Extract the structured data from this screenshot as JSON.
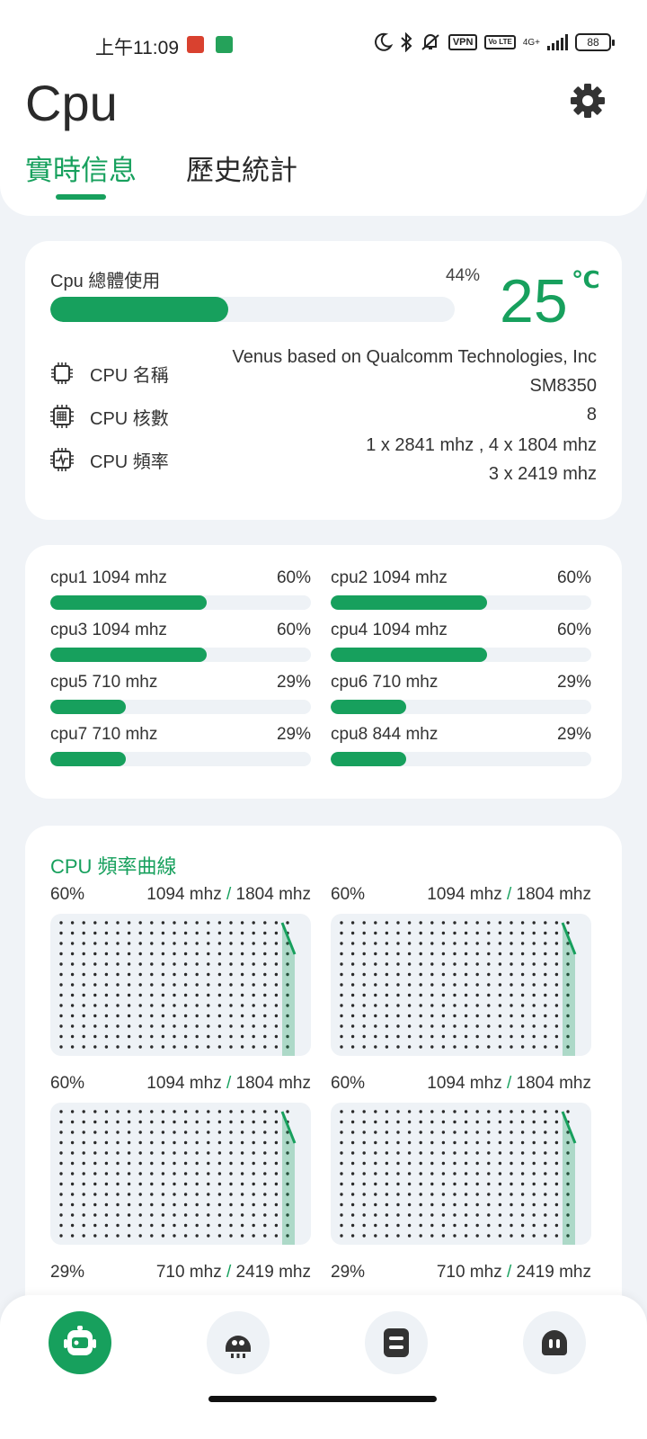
{
  "status_bar": {
    "time": "上午11:09",
    "vpn_label": "VPN",
    "volte_label": "Vo LTE",
    "network_label": "4G+",
    "battery": "88"
  },
  "page": {
    "title": "Cpu",
    "tabs": [
      {
        "label": "實時信息",
        "active": true
      },
      {
        "label": "歷史統計",
        "active": false
      }
    ]
  },
  "overview": {
    "usage_label": "Cpu 總體使用",
    "usage_percent_text": "44%",
    "usage_fraction": 0.44,
    "temperature": "25",
    "temperature_unit": "℃",
    "info": [
      {
        "icon": "chip-icon",
        "key": "CPU 名稱",
        "lines": [
          "Venus based on Qualcomm Technologies, Inc",
          "SM8350"
        ]
      },
      {
        "icon": "cores-icon",
        "key": "CPU 核數",
        "lines": [
          "8"
        ]
      },
      {
        "icon": "frequency-icon",
        "key": "CPU 頻率",
        "lines": [
          "1 x 2841 mhz , 4 x 1804 mhz",
          "3 x 2419 mhz"
        ]
      }
    ]
  },
  "cores": [
    {
      "name": "cpu1  1094 mhz",
      "percent_text": "60%",
      "fraction": 0.6
    },
    {
      "name": "cpu2  1094 mhz",
      "percent_text": "60%",
      "fraction": 0.6
    },
    {
      "name": "cpu3  1094 mhz",
      "percent_text": "60%",
      "fraction": 0.6
    },
    {
      "name": "cpu4  1094 mhz",
      "percent_text": "60%",
      "fraction": 0.6
    },
    {
      "name": "cpu5  710 mhz",
      "percent_text": "29%",
      "fraction": 0.29
    },
    {
      "name": "cpu6  710 mhz",
      "percent_text": "29%",
      "fraction": 0.29
    },
    {
      "name": "cpu7  710 mhz",
      "percent_text": "29%",
      "fraction": 0.29
    },
    {
      "name": "cpu8  844 mhz",
      "percent_text": "29%",
      "fraction": 0.29
    }
  ],
  "curves": {
    "title": "CPU 頻率曲線",
    "graphs": [
      {
        "percent_text": "60%",
        "current": "1094 mhz",
        "max": "1804 mhz"
      },
      {
        "percent_text": "60%",
        "current": "1094 mhz",
        "max": "1804 mhz"
      },
      {
        "percent_text": "60%",
        "current": "1094 mhz",
        "max": "1804 mhz"
      },
      {
        "percent_text": "60%",
        "current": "1094 mhz",
        "max": "1804 mhz"
      },
      {
        "percent_text": "29%",
        "current": "710 mhz",
        "max": "2419 mhz"
      },
      {
        "percent_text": "29%",
        "current": "710 mhz",
        "max": "2419 mhz"
      }
    ]
  },
  "nav": [
    {
      "icon": "cpu-robot-icon",
      "active": true
    },
    {
      "icon": "gpu-icon",
      "active": false
    },
    {
      "icon": "memory-icon",
      "active": false
    },
    {
      "icon": "battery-ghost-icon",
      "active": false
    }
  ],
  "colors": {
    "accent": "#17a05d",
    "track": "#eef2f6",
    "background": "#f0f3f7"
  }
}
